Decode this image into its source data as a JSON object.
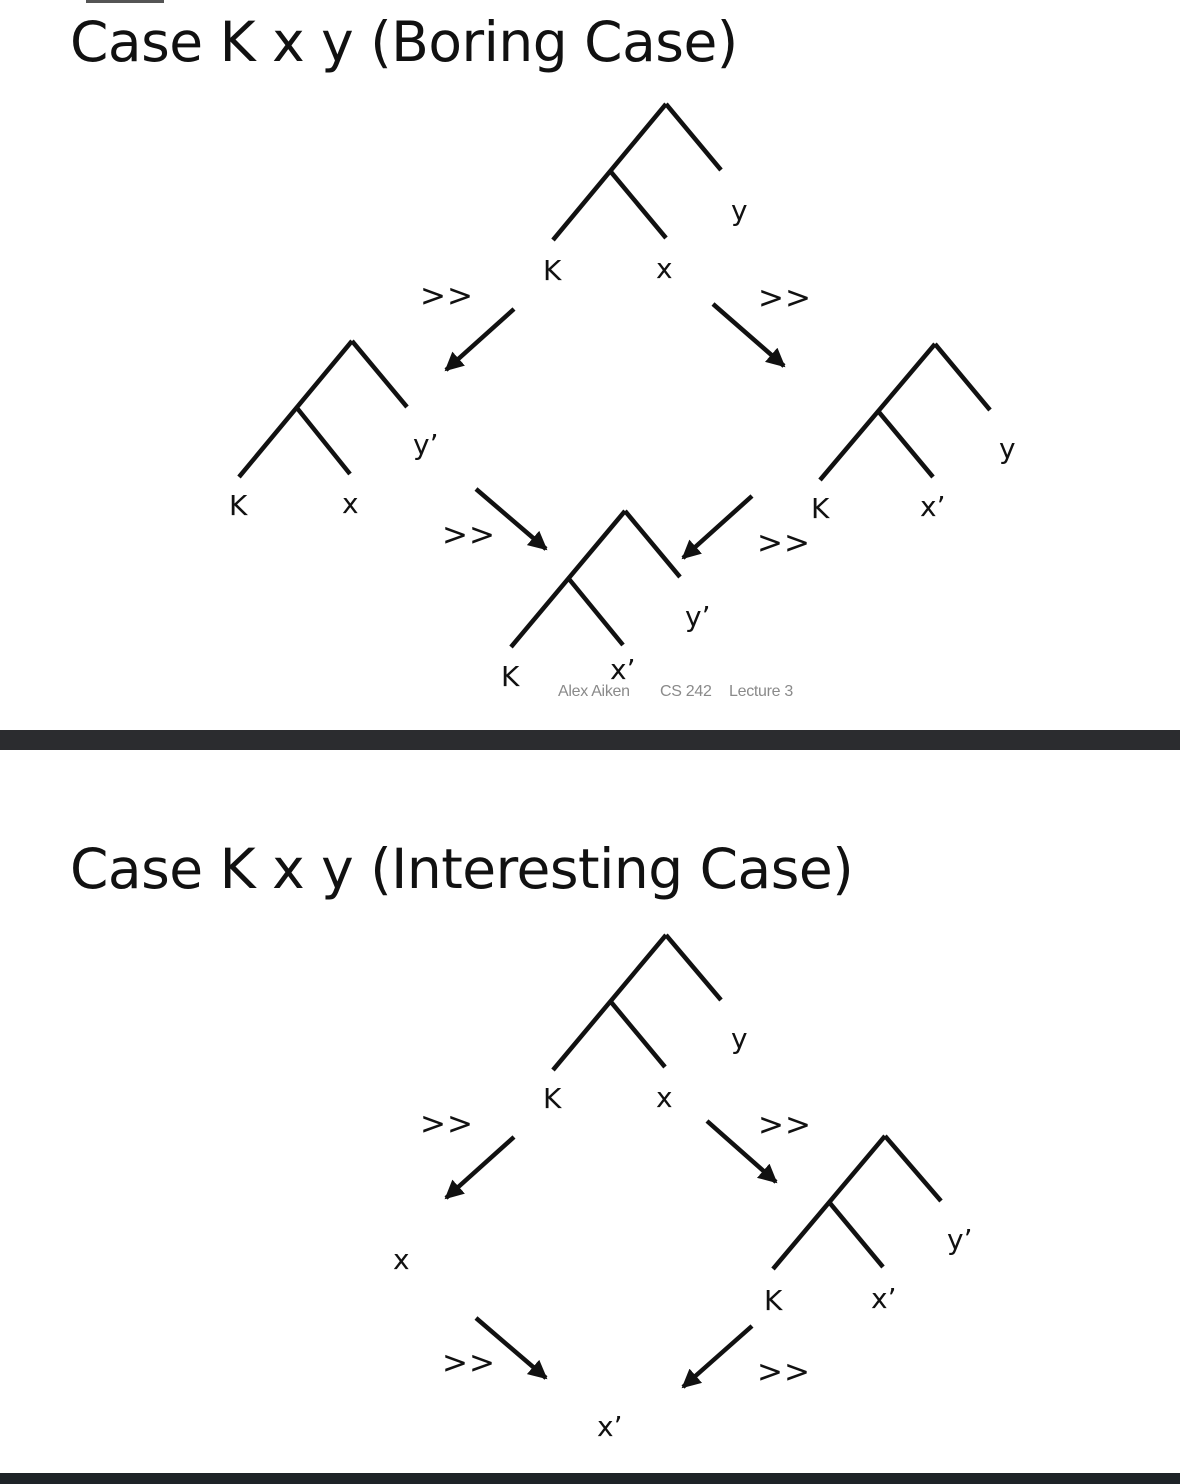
{
  "slide1": {
    "title": "Case K x y (Boring Case)",
    "top_tree": {
      "leaves": [
        "K",
        "x",
        "y"
      ]
    },
    "left_tree": {
      "leaves": [
        "K",
        "x",
        "y’"
      ]
    },
    "right_tree": {
      "leaves": [
        "K",
        "x’",
        "y"
      ]
    },
    "bottom_tree": {
      "leaves": [
        "K",
        "x’",
        "y’"
      ]
    },
    "arrow_label": ">>",
    "footer": {
      "author": "Alex Aiken",
      "course": "CS 242",
      "lecture": "Lecture 3"
    }
  },
  "slide2": {
    "title": "Case K x y (Interesting Case)",
    "top_tree": {
      "leaves": [
        "K",
        "x",
        "y"
      ]
    },
    "left_term": "x",
    "right_tree": {
      "leaves": [
        "K",
        "x’",
        "y’"
      ]
    },
    "bottom_term": "x’",
    "arrow_label": ">>"
  },
  "colors": {
    "ink": "#111111",
    "divider": "#2b2c2f",
    "footer_text": "#8a8a8a"
  }
}
